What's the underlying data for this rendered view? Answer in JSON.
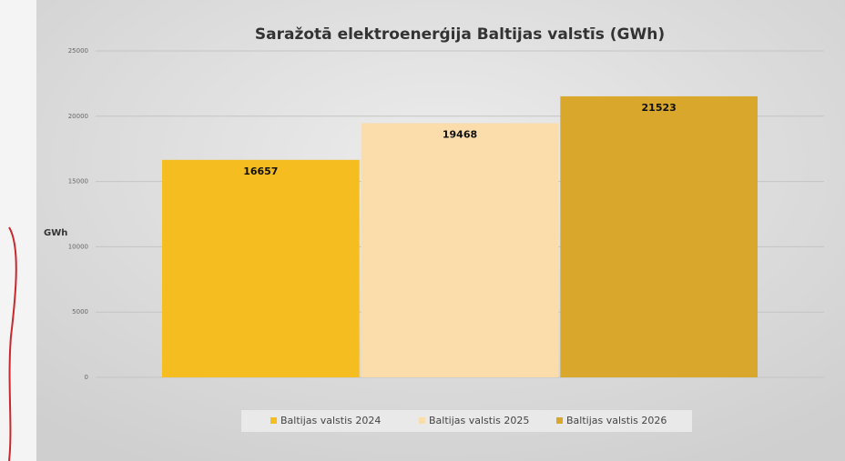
{
  "chart_data": {
    "type": "bar",
    "title": "Saražotā elektroenerģija Baltijas valstīs (GWh)",
    "y_label": "GWh",
    "categories": [
      null
    ],
    "series": [
      {
        "name": "Baltijas valstis 2024",
        "color": "#f5bd1f",
        "values": [
          16657
        ]
      },
      {
        "name": "Baltijas valstis 2025",
        "color": "#fbdcab",
        "values": [
          19468
        ]
      },
      {
        "name": "Baltijas valstis 2026",
        "color": "#d9a72b",
        "values": [
          21523
        ]
      }
    ],
    "ylim": [
      0,
      25000
    ],
    "yticks": [
      0,
      5000,
      10000,
      15000,
      20000,
      25000
    ],
    "grid": true,
    "legend": "bottom"
  }
}
